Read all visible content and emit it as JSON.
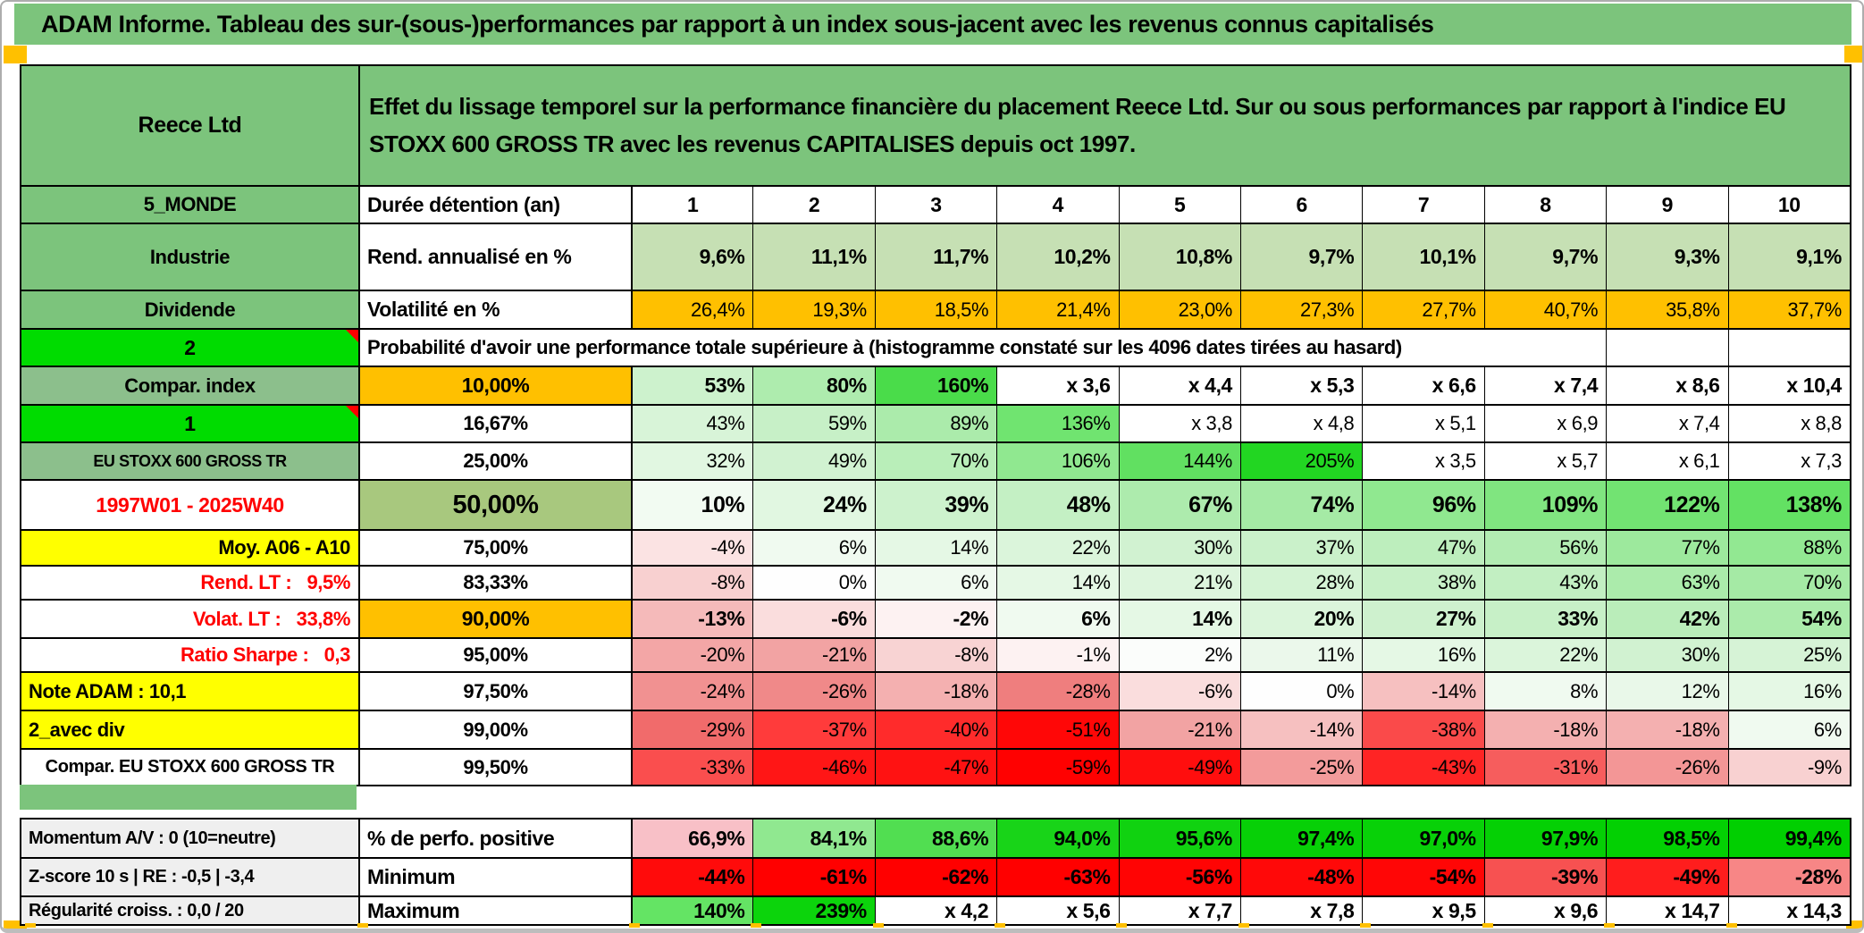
{
  "title": "ADAM Informe. Tableau des sur-(sous-)performances par rapport à un index sous-jacent avec les revenus connus capitalisés",
  "header": {
    "name": "Reece Ltd",
    "description": "Effet du lissage temporel sur la performance financière du placement Reece Ltd. Sur ou sous performances par rapport à l'indice EU STOXX 600 GROSS TR avec les revenus CAPITALISES depuis oct 1997."
  },
  "colors": {
    "banner_green": "#7CC47C",
    "muted_green": "#8CBF8C",
    "bright_green": "#00DC00",
    "olive_green": "#A8C87E",
    "sage_green": "#C6E0B4",
    "orange": "#FFC000",
    "yellow": "#FFFF00",
    "gray_label": "#EFEFEF",
    "negative_red": "#FF0000"
  },
  "table": {
    "columns": [
      "1",
      "2",
      "3",
      "4",
      "5",
      "6",
      "7",
      "8",
      "9",
      "10"
    ],
    "rows": [
      {
        "name": "header",
        "type": "header",
        "a": {
          "t": "Reece Ltd",
          "bg": "#7CC47C",
          "cls": "ctr bold f25"
        },
        "span": {
          "bg": "#7CC47C",
          "cls": "desc"
        }
      },
      {
        "name": "duree",
        "a": {
          "t": "5_MONDE",
          "bg": "#7CC47C",
          "cls": "ctr bold f22"
        },
        "b": {
          "t": "Durée détention (an)",
          "bg": "#FFFFFF",
          "cls": "l bold f23"
        },
        "cells": [
          "1",
          "2",
          "3",
          "4",
          "5",
          "6",
          "7",
          "8",
          "9",
          "10"
        ],
        "bgs": "#FFFFFF",
        "cellCls": "ctr bold f23"
      },
      {
        "name": "rend",
        "a": {
          "t": "Industrie",
          "bg": "#7CC47C",
          "cls": "ctr bold f22"
        },
        "b": {
          "t": "Rend. annualisé en %",
          "bg": "#FFFFFF",
          "cls": "l bold f23"
        },
        "cells": [
          "9,6%",
          "11,1%",
          "11,7%",
          "10,2%",
          "10,8%",
          "9,7%",
          "10,1%",
          "9,7%",
          "9,3%",
          "9,1%"
        ],
        "bgs": "#C6E0B4",
        "cellCls": "r bold f23"
      },
      {
        "name": "volat",
        "a": {
          "t": "Dividende",
          "bg": "#7CC47C",
          "cls": "ctr bold f22"
        },
        "b": {
          "t": "Volatilité en %",
          "bg": "#FFFFFF",
          "cls": "l bold f23"
        },
        "cells": [
          "26,4%",
          "19,3%",
          "18,5%",
          "21,4%",
          "23,0%",
          "27,3%",
          "27,7%",
          "40,7%",
          "35,8%",
          "37,7%"
        ],
        "bgs": "#FFC000",
        "cellCls": "r f22"
      },
      {
        "name": "prob",
        "type": "span8",
        "a": {
          "t": "2",
          "bg": "#00DC00",
          "cls": "ctr bold f23",
          "flag": true
        },
        "span": {
          "t": "Probabilité d'avoir une performance totale supérieure à (histogramme constaté sur les 4096 dates tirées au hasard)",
          "bg": "#FFFFFF",
          "cls": "l bold f22"
        }
      },
      {
        "name": "p10",
        "a": {
          "t": "Compar. index",
          "bg": "#8CBF8C",
          "cls": "ctr bold f22"
        },
        "b": {
          "t": "10,00%",
          "bg": "#FFC000",
          "cls": "ctr bold f23"
        },
        "cells": [
          "53%",
          "80%",
          "160%",
          "x 3,6",
          "x 4,4",
          "x 5,3",
          "x 6,6",
          "x 7,4",
          "x 8,6",
          "x 10,4"
        ],
        "bgs": [
          "#CDF2CD",
          "#AEECAE",
          "#4ADC4A",
          "#FFFFFF",
          "#FFFFFF",
          "#FFFFFF",
          "#FFFFFF",
          "#FFFFFF",
          "#FFFFFF",
          "#FFFFFF"
        ],
        "cellCls": "r bold f23"
      },
      {
        "name": "p16",
        "a": {
          "t": "1",
          "bg": "#00DC00",
          "cls": "ctr bold f23",
          "flag": true
        },
        "b": {
          "t": "16,67%",
          "bg": "#FFFFFF",
          "cls": "ctr bold f22"
        },
        "cells": [
          "43%",
          "59%",
          "89%",
          "136%",
          "x 3,8",
          "x 4,8",
          "x 5,1",
          "x 6,9",
          "x 7,4",
          "x 8,8"
        ],
        "bgs": [
          "#D8F4D8",
          "#C7F0C7",
          "#ABEBAB",
          "#70E470",
          "#FFFFFF",
          "#FFFFFF",
          "#FFFFFF",
          "#FFFFFF",
          "#FFFFFF",
          "#FFFFFF"
        ],
        "cellCls": "r f22"
      },
      {
        "name": "p25",
        "a": {
          "t": "EU STOXX 600 GROSS TR",
          "bg": "#8CBF8C",
          "cls": "ctr bold f18"
        },
        "b": {
          "t": "25,00%",
          "bg": "#FFFFFF",
          "cls": "ctr bold f22"
        },
        "cells": [
          "32%",
          "49%",
          "70%",
          "106%",
          "144%",
          "205%",
          "x 3,5",
          "x 5,7",
          "x 6,1",
          "x 7,3"
        ],
        "bgs": [
          "#E1F7E1",
          "#D1F2D1",
          "#B9EEB9",
          "#90E890",
          "#61E061",
          "#22D622",
          "#FFFFFF",
          "#FFFFFF",
          "#FFFFFF",
          "#FFFFFF"
        ],
        "cellCls": "r f22"
      },
      {
        "name": "p50",
        "a": {
          "t": "1997W01 - 2025W40",
          "bg": "#FFFFFF",
          "cls": "ctr bold red f23"
        },
        "b": {
          "t": "50,00%",
          "bg": "#A8C87E",
          "cls": "ctr bold f29"
        },
        "cells": [
          "10%",
          "24%",
          "39%",
          "48%",
          "67%",
          "74%",
          "96%",
          "109%",
          "122%",
          "138%"
        ],
        "bgs": [
          "#F2FBF2",
          "#E1F7E1",
          "#CDF2CD",
          "#C4F0C4",
          "#ADEBAD",
          "#A5EAA5",
          "#90E890",
          "#80E580",
          "#72E372",
          "#63E163"
        ],
        "cellCls": "r bold f25"
      },
      {
        "name": "p75",
        "a": {
          "t": "Moy. A06 - A10",
          "bg": "#FFFF00",
          "cls": "r bold f22"
        },
        "b": {
          "t": "75,00%",
          "bg": "#FFFFFF",
          "cls": "ctr bold f22"
        },
        "cells": [
          "-4%",
          "6%",
          "14%",
          "22%",
          "30%",
          "37%",
          "47%",
          "56%",
          "77%",
          "88%"
        ],
        "bgs": [
          "#FBE3E3",
          "#F0FAF0",
          "#E5F8E5",
          "#DBF5DB",
          "#D1F2D1",
          "#CAF1CA",
          "#BDEEBD",
          "#B2ECB2",
          "#9DE99D",
          "#92E892"
        ],
        "cellCls": "r f22"
      },
      {
        "name": "p83",
        "a": {
          "t": "Rend. LT :   9,5%",
          "bg": "#FFFFFF",
          "cls": "r bold red f22"
        },
        "b": {
          "t": "83,33%",
          "bg": "#FFFFFF",
          "cls": "ctr bold f22"
        },
        "cells": [
          "-8%",
          "0%",
          "6%",
          "14%",
          "21%",
          "28%",
          "38%",
          "43%",
          "63%",
          "70%"
        ],
        "bgs": [
          "#F8D0D0",
          "#FEFEFE",
          "#F0FAF0",
          "#E5F8E5",
          "#DDF5DD",
          "#D4F3D4",
          "#C7F0C7",
          "#C2EFC2",
          "#ABEBAB",
          "#A5EAA5"
        ],
        "cellCls": "r f22"
      },
      {
        "name": "p90",
        "a": {
          "t": "Volat. LT :   33,8%",
          "bg": "#FFFFFF",
          "cls": "r bold red f22"
        },
        "b": {
          "t": "90,00%",
          "bg": "#FFC000",
          "cls": "ctr bold f23"
        },
        "cells": [
          "-13%",
          "-6%",
          "-2%",
          "6%",
          "14%",
          "20%",
          "27%",
          "33%",
          "42%",
          "54%"
        ],
        "bgs": [
          "#F5BABA",
          "#FADDDD",
          "#FDF2F2",
          "#F0FAF0",
          "#E5F8E5",
          "#DBF5DB",
          "#CEF1CE",
          "#C7F0C7",
          "#BAEDBA",
          "#ABEBAB"
        ],
        "cellCls": "r bold f23"
      },
      {
        "name": "p95",
        "a": {
          "t": "Ratio Sharpe :   0,3",
          "bg": "#FFFFFF",
          "cls": "r bold red f22"
        },
        "b": {
          "t": "95,00%",
          "bg": "#FFFFFF",
          "cls": "ctr bold f22"
        },
        "cells": [
          "-20%",
          "-21%",
          "-8%",
          "-1%",
          "2%",
          "11%",
          "16%",
          "22%",
          "30%",
          "25%"
        ],
        "bgs": [
          "#F3A6A6",
          "#F2A3A3",
          "#F8D3D3",
          "#FDF2F2",
          "#FBFDFB",
          "#EBF8EB",
          "#E5F8E5",
          "#DBF5DB",
          "#D1F2D1",
          "#D6F3D6"
        ],
        "cellCls": "r f22"
      },
      {
        "name": "p975",
        "a": {
          "t": "Note ADAM : 10,1",
          "bg": "#FFFF00",
          "cls": "l bold f22"
        },
        "b": {
          "t": "97,50%",
          "bg": "#FFFFFF",
          "cls": "ctr bold f22"
        },
        "cells": [
          "-24%",
          "-26%",
          "-18%",
          "-28%",
          "-6%",
          "0%",
          "-14%",
          "8%",
          "12%",
          "16%"
        ],
        "bgs": [
          "#F19191",
          "#F08989",
          "#F4B0B0",
          "#EF7E7E",
          "#FADDDD",
          "#FEFEFE",
          "#F6C0C0",
          "#F0FAF0",
          "#E9F8E9",
          "#E5F8E5"
        ],
        "cellCls": "r f22"
      },
      {
        "name": "p99",
        "a": {
          "t": "2_avec div",
          "bg": "#FFFF00",
          "cls": "l bold f22"
        },
        "b": {
          "t": "99,00%",
          "bg": "#FFFFFF",
          "cls": "ctr bold f22"
        },
        "cells": [
          "-29%",
          "-37%",
          "-40%",
          "-51%",
          "-21%",
          "-14%",
          "-38%",
          "-18%",
          "-18%",
          "6%"
        ],
        "bgs": [
          "#F16B6B",
          "#FF3B3B",
          "#FF2B2B",
          "#FF0707",
          "#F2A3A3",
          "#F6C0C0",
          "#FA4A4A",
          "#F4B0B0",
          "#F4B0B0",
          "#F0FAF0"
        ],
        "cellCls": "r f22"
      },
      {
        "name": "p995",
        "a": {
          "t": "Compar. EU STOXX 600 GROSS TR",
          "bg": "#FFFFFF",
          "cls": "ctr bold f20"
        },
        "b": {
          "t": "99,50%",
          "bg": "#FFFFFF",
          "cls": "ctr bold f22"
        },
        "cells": [
          "-33%",
          "-46%",
          "-47%",
          "-59%",
          "-49%",
          "-25%",
          "-43%",
          "-31%",
          "-26%",
          "-9%"
        ],
        "bgs": [
          "#FA4E4E",
          "#FF1616",
          "#FF1212",
          "#FF0101",
          "#FF0E0E",
          "#F39B9B",
          "#FF2424",
          "#F65D5D",
          "#F39696",
          "#F8D1D1"
        ],
        "cellCls": "r f22"
      }
    ],
    "bottom_rows": [
      {
        "name": "perfo",
        "a": {
          "t": "Momentum A/V : 0 (10=neutre)",
          "bg": "#EFEFEF",
          "cls": "l bold f20"
        },
        "b": {
          "t": "% de perfo. positive",
          "bg": "#FFFFFF",
          "cls": "l bold f23"
        },
        "cells": [
          "66,9%",
          "84,1%",
          "88,6%",
          "94,0%",
          "95,6%",
          "97,4%",
          "97,0%",
          "97,9%",
          "98,5%",
          "99,4%"
        ],
        "bgs": [
          "#F8C0C7",
          "#90E890",
          "#51DE51",
          "#18D418",
          "#10D210",
          "#07D007",
          "#08D108",
          "#05D005",
          "#03D003",
          "#01CF01"
        ],
        "cellCls": "r bold f23"
      },
      {
        "name": "min",
        "a": {
          "t": "Z-score 10 s | RE : -0,5 | -3,4",
          "bg": "#EFEFEF",
          "cls": "l bold f20"
        },
        "b": {
          "t": "Minimum",
          "bg": "#FFFFFF",
          "cls": "l bold f23"
        },
        "cells": [
          "-44%",
          "-61%",
          "-62%",
          "-63%",
          "-56%",
          "-48%",
          "-54%",
          "-39%",
          "-49%",
          "-28%"
        ],
        "bgs": [
          "#FF0B0B",
          "#FF0000",
          "#FF0000",
          "#FF0000",
          "#FF0404",
          "#FF0909",
          "#FF0606",
          "#F75151",
          "#FF1D1D",
          "#F78686"
        ],
        "cellCls": "r bold f23"
      },
      {
        "name": "max",
        "a": {
          "t": "Régularité croiss. : 0,0 / 20",
          "bg": "#EFEFEF",
          "cls": "l bold f20"
        },
        "b": {
          "t": "Maximum",
          "bg": "#FFFFFF",
          "cls": "l bold f23"
        },
        "cells": [
          "140%",
          "239%",
          "x 4,2",
          "x 5,6",
          "x 7,7",
          "x 7,8",
          "x 9,5",
          "x 9,6",
          "x 14,7",
          "x 14,3"
        ],
        "bgs": [
          "#64E464",
          "#0CD40C",
          "#FFFFFF",
          "#FFFFFF",
          "#FFFFFF",
          "#FFFFFF",
          "#FFFFFF",
          "#FFFFFF",
          "#FFFFFF",
          "#FFFFFF"
        ],
        "cellCls": "r bold f23"
      }
    ]
  }
}
